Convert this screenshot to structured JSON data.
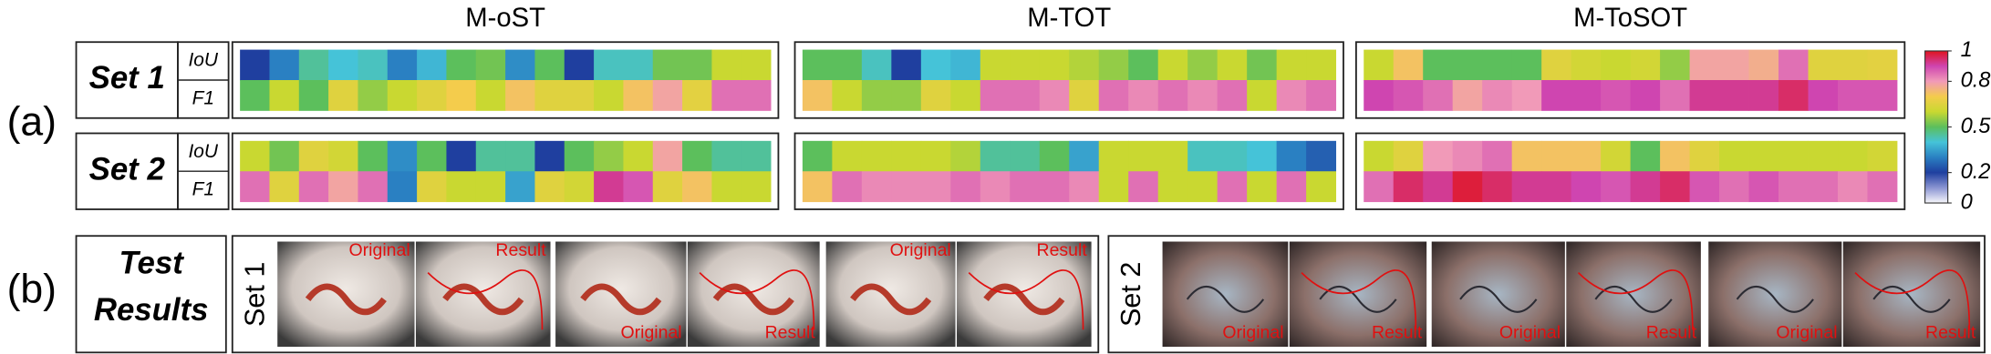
{
  "chart_data": {
    "type": "heatmap",
    "methods": [
      "M-oST",
      "M-TOT",
      "M-ToSOT"
    ],
    "sets": [
      "Set 1",
      "Set 2"
    ],
    "metrics": [
      "IoU",
      "F1"
    ],
    "panel_labels": [
      "(a)",
      "(b)"
    ],
    "colormap": [
      "#f7f7fb",
      "#8a94d2",
      "#1f3f9f",
      "#2a80c2",
      "#45c3d8",
      "#5cbf5c",
      "#c9d831",
      "#f4cc4c",
      "#f19ab8",
      "#cf45b0",
      "#e0141e"
    ],
    "clim": [
      0,
      1
    ],
    "cticks": [
      0,
      0.2,
      0.5,
      0.8,
      1
    ],
    "values": [
      [
        [
          [
            0.2,
            0.3,
            0.45,
            0.4,
            0.42,
            0.3,
            0.38,
            0.5,
            0.52,
            0.32,
            0.5,
            0.2,
            0.42,
            0.42,
            0.52,
            0.52,
            0.6,
            0.6
          ],
          [
            0.5,
            0.6,
            0.5,
            0.65,
            0.55,
            0.6,
            0.65,
            0.7,
            0.6,
            0.72,
            0.65,
            0.65,
            0.6,
            0.72,
            0.78,
            0.66,
            0.85,
            0.85
          ]
        ],
        [
          [
            0.5,
            0.5,
            0.42,
            0.2,
            0.4,
            0.38,
            0.6,
            0.6,
            0.6,
            0.58,
            0.55,
            0.5,
            0.6,
            0.55,
            0.6,
            0.52,
            0.6,
            0.6
          ],
          [
            0.72,
            0.6,
            0.55,
            0.55,
            0.65,
            0.6,
            0.85,
            0.85,
            0.82,
            0.65,
            0.85,
            0.82,
            0.85,
            0.82,
            0.85,
            0.6,
            0.82,
            0.85
          ]
        ],
        [
          [
            0.6,
            0.72,
            0.5,
            0.5,
            0.5,
            0.5,
            0.65,
            0.62,
            0.6,
            0.62,
            0.55,
            0.78,
            0.78,
            0.76,
            0.85,
            0.65,
            0.65,
            0.66
          ],
          [
            0.9,
            0.88,
            0.85,
            0.78,
            0.82,
            0.8,
            0.9,
            0.9,
            0.88,
            0.9,
            0.85,
            0.92,
            0.92,
            0.92,
            0.95,
            0.9,
            0.88,
            0.88
          ]
        ]
      ],
      [
        [
          [
            0.6,
            0.52,
            0.65,
            0.62,
            0.5,
            0.32,
            0.5,
            0.2,
            0.45,
            0.45,
            0.2,
            0.5,
            0.55,
            0.6,
            0.78,
            0.5,
            0.45,
            0.45
          ],
          [
            0.85,
            0.65,
            0.85,
            0.78,
            0.85,
            0.3,
            0.65,
            0.6,
            0.6,
            0.35,
            0.65,
            0.62,
            0.92,
            0.88,
            0.65,
            0.72,
            0.6,
            0.6
          ]
        ],
        [
          [
            0.5,
            0.6,
            0.6,
            0.6,
            0.6,
            0.58,
            0.45,
            0.45,
            0.5,
            0.35,
            0.6,
            0.6,
            0.6,
            0.42,
            0.42,
            0.4,
            0.3,
            0.25
          ],
          [
            0.72,
            0.85,
            0.82,
            0.82,
            0.82,
            0.85,
            0.82,
            0.85,
            0.85,
            0.82,
            0.6,
            0.85,
            0.6,
            0.6,
            0.85,
            0.6,
            0.85,
            0.6
          ]
        ],
        [
          [
            0.6,
            0.65,
            0.8,
            0.82,
            0.85,
            0.72,
            0.72,
            0.72,
            0.62,
            0.5,
            0.72,
            0.65,
            0.6,
            0.6,
            0.6,
            0.6,
            0.6,
            0.62
          ],
          [
            0.85,
            0.95,
            0.92,
            0.98,
            0.95,
            0.92,
            0.92,
            0.9,
            0.88,
            0.92,
            0.95,
            0.88,
            0.85,
            0.88,
            0.85,
            0.85,
            0.82,
            0.85
          ]
        ]
      ]
    ]
  },
  "test_results": {
    "title": [
      "Test",
      "Results"
    ],
    "images": [
      [
        {
          "label": "Original"
        },
        {
          "label": "Result"
        },
        {
          "label": "Original"
        },
        {
          "label": "Result"
        },
        {
          "label": "Original"
        },
        {
          "label": "Result"
        }
      ],
      [
        {
          "label": "Original"
        },
        {
          "label": "Result"
        },
        {
          "label": "Original"
        },
        {
          "label": "Result"
        },
        {
          "label": "Original"
        },
        {
          "label": "Result"
        }
      ]
    ]
  }
}
